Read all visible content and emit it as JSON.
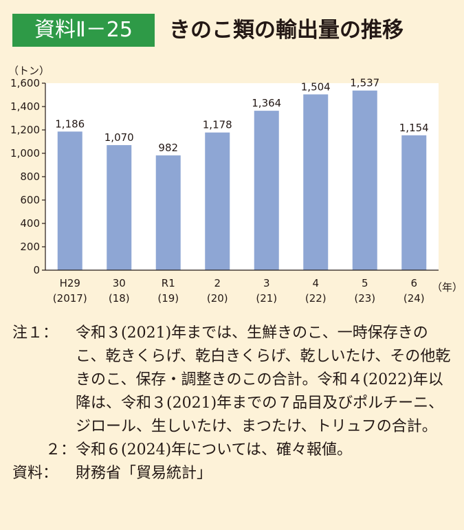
{
  "header": {
    "badge": "資料Ⅱ－25",
    "title": "きのこ類の輸出量の推移"
  },
  "chart_data": {
    "type": "bar",
    "ylabel": "（トン）",
    "xlabel": "（年）",
    "ylim": [
      0,
      1600
    ],
    "yticks": [
      "0",
      "200",
      "400",
      "600",
      "800",
      "1,000",
      "1,200",
      "1,400",
      "1,600"
    ],
    "categories": [
      "H29",
      "30",
      "R1",
      "2",
      "3",
      "4",
      "5",
      "6"
    ],
    "categories_sub": [
      "(2017)",
      "(18)",
      "(19)",
      "(20)",
      "(21)",
      "(22)",
      "(23)",
      "(24)"
    ],
    "values": [
      1186,
      1070,
      982,
      1178,
      1364,
      1504,
      1537,
      1154
    ],
    "value_labels": [
      "1,186",
      "1,070",
      "982",
      "1,178",
      "1,364",
      "1,504",
      "1,537",
      "1,154"
    ],
    "bar_color": "#8ea6d4",
    "plot_background": "#ffffff",
    "grid": false
  },
  "notes": {
    "note1_label": "注１：",
    "note1_text": "令和３(2021)年までは、生鮮きのこ、一時保存きのこ、乾きくらげ、乾白きくらげ、乾しいたけ、その他乾きのこ、保存・調整きのこの合計。令和４(2022)年以降は、令和３(2021)年までの７品目及びポルチーニ、ジロール、生しいたけ、まつたけ、トリュフの合計。",
    "note2_label": "２：",
    "note2_text": "令和６(2024)年については、確々報値。",
    "source_label": "資料：",
    "source_text": "財務省「貿易統計」"
  }
}
